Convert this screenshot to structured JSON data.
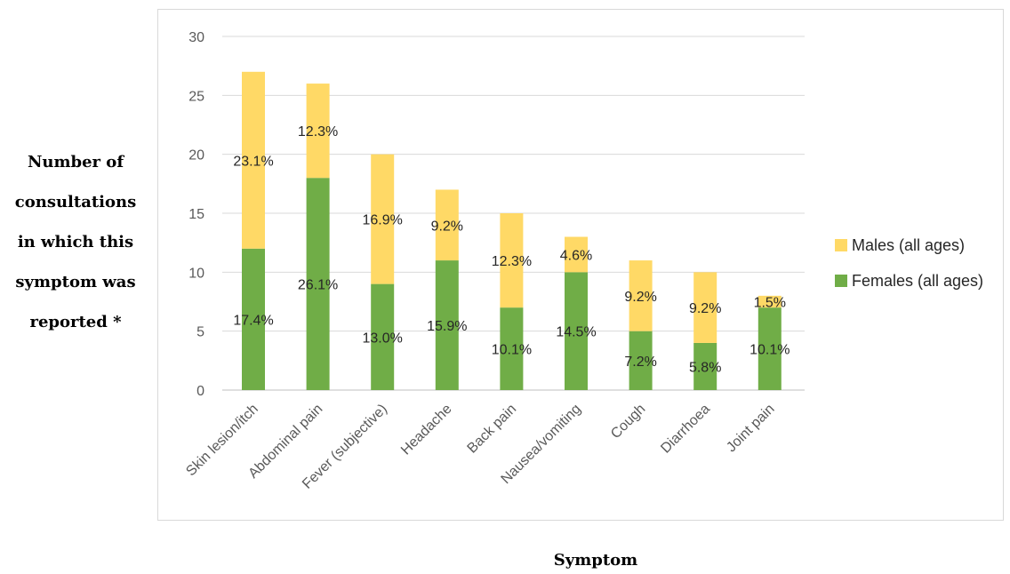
{
  "chart_data": {
    "type": "bar",
    "stacked": true,
    "ylabel_lines": [
      "Number of",
      "consultations",
      "in which this",
      "symptom was",
      "reported *"
    ],
    "xlabel": "Symptom",
    "ylim": [
      0,
      30
    ],
    "yticks": [
      0,
      5,
      10,
      15,
      20,
      25,
      30
    ],
    "grid": true,
    "legend_position": "right",
    "categories": [
      "Skin lesion/itch",
      "Abdominal pain",
      "Fever (subjective)",
      "Headache",
      "Back pain",
      "Nausea/vomiting",
      "Cough",
      "Diarrhoea",
      "Joint pain"
    ],
    "series": [
      {
        "name": "Females (all ages)",
        "color": "#70ad47",
        "values": [
          12,
          18,
          9,
          11,
          7,
          10,
          5,
          4,
          7
        ],
        "labels": [
          "17.4%",
          "26.1%",
          "13.0%",
          "15.9%",
          "10.1%",
          "14.5%",
          "7.2%",
          "5.8%",
          "10.1%"
        ]
      },
      {
        "name": "Males (all ages)",
        "color": "#ffd966",
        "values": [
          15,
          8,
          11,
          6,
          8,
          3,
          6,
          6,
          1
        ],
        "labels": [
          "23.1%",
          "12.3%",
          "16.9%",
          "9.2%",
          "12.3%",
          "4.6%",
          "9.2%",
          "9.2%",
          "1.5%"
        ]
      }
    ],
    "legend_order": [
      "Males (all ages)",
      "Females (all ages)"
    ]
  }
}
